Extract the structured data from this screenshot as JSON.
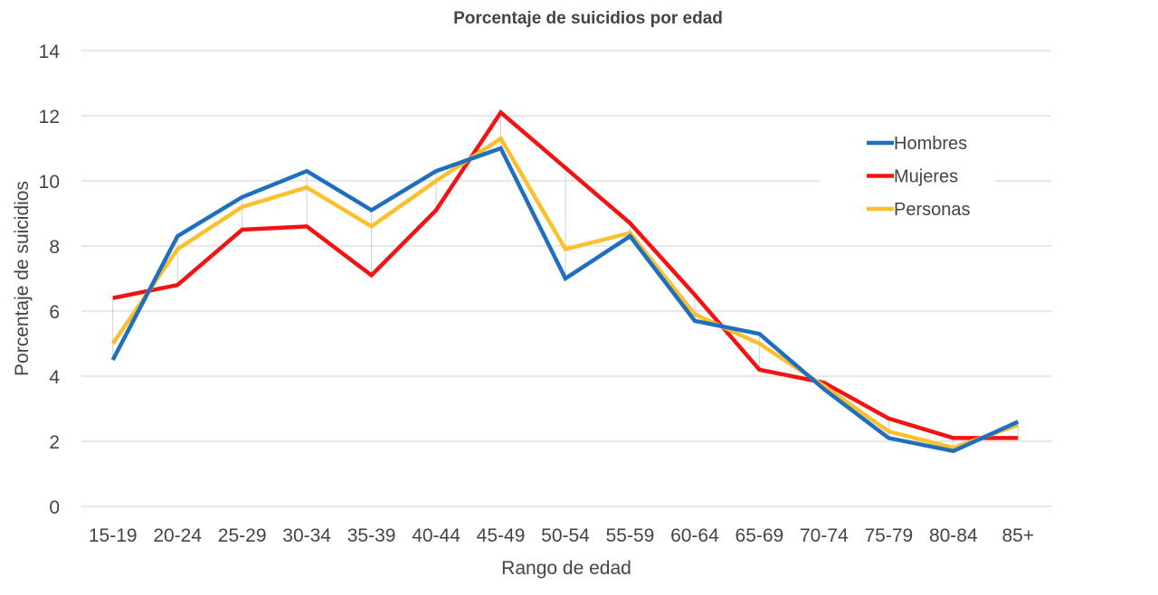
{
  "chart_data": {
    "type": "line",
    "title": "Porcentaje de suicidios por edad",
    "xlabel": "Rango de edad",
    "ylabel": "Porcentaje de suicidios",
    "ylim": [
      0,
      14
    ],
    "yticks": [
      0,
      2,
      4,
      6,
      8,
      10,
      12,
      14
    ],
    "grid": true,
    "legend_position": "top-right",
    "categories": [
      "15-19",
      "20-24",
      "25-29",
      "30-34",
      "35-39",
      "40-44",
      "45-49",
      "50-54",
      "55-59",
      "60-64",
      "65-69",
      "70-74",
      "75-79",
      "80-84",
      "85+"
    ],
    "series": [
      {
        "name": "Hombres",
        "color": "#1f6fbf",
        "values": [
          4.5,
          8.3,
          9.5,
          10.3,
          9.1,
          10.3,
          11.0,
          7.0,
          8.3,
          5.7,
          5.3,
          3.6,
          2.1,
          1.7,
          2.6
        ]
      },
      {
        "name": "Mujeres",
        "color": "#f21414",
        "values": [
          6.4,
          6.8,
          8.5,
          8.6,
          7.1,
          9.1,
          12.1,
          10.4,
          8.7,
          6.5,
          4.2,
          3.8,
          2.7,
          2.1,
          2.1
        ]
      },
      {
        "name": "Personas",
        "color": "#fbc02d",
        "values": [
          5.0,
          7.9,
          9.2,
          9.8,
          8.6,
          10.0,
          11.3,
          7.9,
          8.4,
          5.9,
          5.0,
          3.7,
          2.3,
          1.8,
          2.5
        ]
      }
    ]
  }
}
